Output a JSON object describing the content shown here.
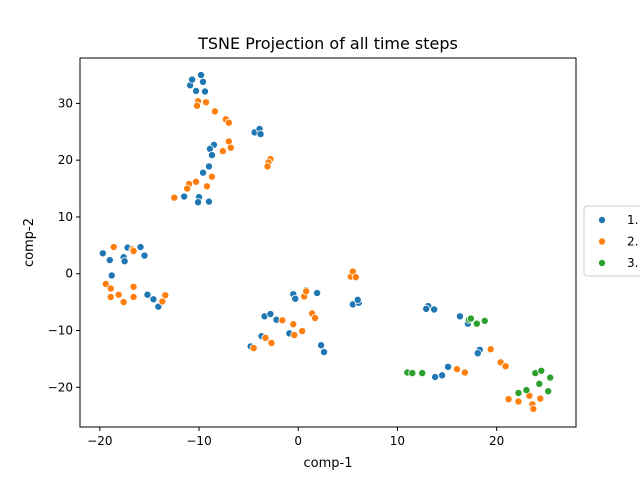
{
  "chart_data": {
    "type": "scatter",
    "title": "TSNE Projection of all time steps",
    "xlabel": "comp-1",
    "ylabel": "comp-2",
    "xlim": [
      -22,
      28
    ],
    "ylim": [
      -27,
      38
    ],
    "xticks": [
      -20,
      -10,
      0,
      10,
      20
    ],
    "yticks": [
      -20,
      -10,
      0,
      10,
      20,
      30
    ],
    "grid": false,
    "legend_placement": "right-center (outside)",
    "series": [
      {
        "name": "1.",
        "color": "#1f77b4",
        "points": [
          [
            -10.9,
            33.2
          ],
          [
            -10.7,
            34.2
          ],
          [
            -9.8,
            35.0
          ],
          [
            -10.3,
            32.2
          ],
          [
            -9.6,
            33.8
          ],
          [
            -9.4,
            32.1
          ],
          [
            -4.4,
            24.9
          ],
          [
            -3.9,
            25.5
          ],
          [
            -3.8,
            24.6
          ],
          [
            -8.5,
            22.7
          ],
          [
            -8.9,
            22.0
          ],
          [
            -8.7,
            20.9
          ],
          [
            -9.0,
            18.9
          ],
          [
            -9.6,
            17.8
          ],
          [
            -10.0,
            13.5
          ],
          [
            -10.1,
            12.6
          ],
          [
            -9.0,
            12.7
          ],
          [
            -11.5,
            13.6
          ],
          [
            -19.7,
            3.6
          ],
          [
            -17.2,
            4.6
          ],
          [
            -15.9,
            4.7
          ],
          [
            -15.5,
            3.2
          ],
          [
            -17.6,
            2.9
          ],
          [
            -17.5,
            2.2
          ],
          [
            -19.0,
            2.4
          ],
          [
            -18.8,
            -0.3
          ],
          [
            -15.2,
            -3.7
          ],
          [
            -14.6,
            -4.5
          ],
          [
            -14.1,
            -5.8
          ],
          [
            -0.5,
            -3.6
          ],
          [
            -0.3,
            -4.4
          ],
          [
            1.9,
            -3.4
          ],
          [
            0.8,
            -2.9
          ],
          [
            -3.4,
            -7.5
          ],
          [
            -2.8,
            -7.1
          ],
          [
            -2.2,
            -8.1
          ],
          [
            -3.7,
            -11.0
          ],
          [
            -0.9,
            -10.5
          ],
          [
            2.3,
            -12.6
          ],
          [
            2.6,
            -13.8
          ],
          [
            -4.8,
            -12.8
          ],
          [
            5.5,
            -5.4
          ],
          [
            6.1,
            -5.1
          ],
          [
            6.0,
            -4.6
          ],
          [
            13.1,
            -5.7
          ],
          [
            13.7,
            -6.3
          ],
          [
            12.9,
            -6.2
          ],
          [
            16.3,
            -7.5
          ],
          [
            17.1,
            -8.8
          ],
          [
            18.3,
            -13.4
          ],
          [
            18.1,
            -14.0
          ],
          [
            13.8,
            -18.2
          ],
          [
            14.5,
            -17.9
          ],
          [
            15.1,
            -16.4
          ]
        ]
      },
      {
        "name": "2.",
        "color": "#ff7f0e",
        "points": [
          [
            -10.1,
            30.4
          ],
          [
            -10.2,
            29.6
          ],
          [
            -9.3,
            30.2
          ],
          [
            -8.4,
            28.6
          ],
          [
            -7.3,
            27.2
          ],
          [
            -7.0,
            26.6
          ],
          [
            -7.0,
            23.3
          ],
          [
            -6.8,
            22.2
          ],
          [
            -7.6,
            21.6
          ],
          [
            -2.8,
            20.2
          ],
          [
            -3.0,
            19.6
          ],
          [
            -3.1,
            18.9
          ],
          [
            -11.0,
            15.8
          ],
          [
            -11.2,
            15.0
          ],
          [
            -10.3,
            16.2
          ],
          [
            -12.5,
            13.4
          ],
          [
            -9.2,
            15.4
          ],
          [
            -8.7,
            17.1
          ],
          [
            -18.6,
            4.7
          ],
          [
            -16.7,
            4.3
          ],
          [
            -16.6,
            4.0
          ],
          [
            -19.4,
            -1.8
          ],
          [
            -18.9,
            -2.6
          ],
          [
            -18.9,
            -4.1
          ],
          [
            -18.1,
            -3.7
          ],
          [
            -17.6,
            -5.0
          ],
          [
            -16.6,
            -2.3
          ],
          [
            -16.6,
            -4.1
          ],
          [
            -13.4,
            -3.8
          ],
          [
            -13.7,
            -4.9
          ],
          [
            -1.6,
            -8.2
          ],
          [
            -0.5,
            -8.9
          ],
          [
            -0.4,
            -10.8
          ],
          [
            0.4,
            -10.1
          ],
          [
            0.6,
            -4.0
          ],
          [
            0.8,
            -3.1
          ],
          [
            1.4,
            -7.0
          ],
          [
            1.7,
            -7.8
          ],
          [
            -3.3,
            -11.3
          ],
          [
            -2.7,
            -12.2
          ],
          [
            -4.5,
            -13.1
          ],
          [
            5.3,
            -0.5
          ],
          [
            5.5,
            0.4
          ],
          [
            5.8,
            -0.6
          ],
          [
            16.0,
            -16.8
          ],
          [
            16.8,
            -17.4
          ],
          [
            19.4,
            -13.3
          ],
          [
            20.4,
            -15.6
          ],
          [
            20.9,
            -16.3
          ],
          [
            21.2,
            -22.1
          ],
          [
            22.2,
            -22.5
          ],
          [
            23.3,
            -21.5
          ],
          [
            23.6,
            -23.0
          ],
          [
            23.7,
            -23.8
          ],
          [
            24.4,
            -22.0
          ]
        ]
      },
      {
        "name": "3.",
        "color": "#2ca02c",
        "points": [
          [
            11.0,
            -17.4
          ],
          [
            11.5,
            -17.5
          ],
          [
            12.5,
            -17.5
          ],
          [
            17.2,
            -8.1
          ],
          [
            17.4,
            -7.9
          ],
          [
            18.0,
            -8.8
          ],
          [
            18.8,
            -8.3
          ],
          [
            22.2,
            -21.0
          ],
          [
            23.0,
            -20.5
          ],
          [
            23.9,
            -17.5
          ],
          [
            24.3,
            -19.4
          ],
          [
            24.5,
            -17.1
          ],
          [
            25.2,
            -20.7
          ],
          [
            25.4,
            -18.3
          ]
        ]
      }
    ]
  }
}
